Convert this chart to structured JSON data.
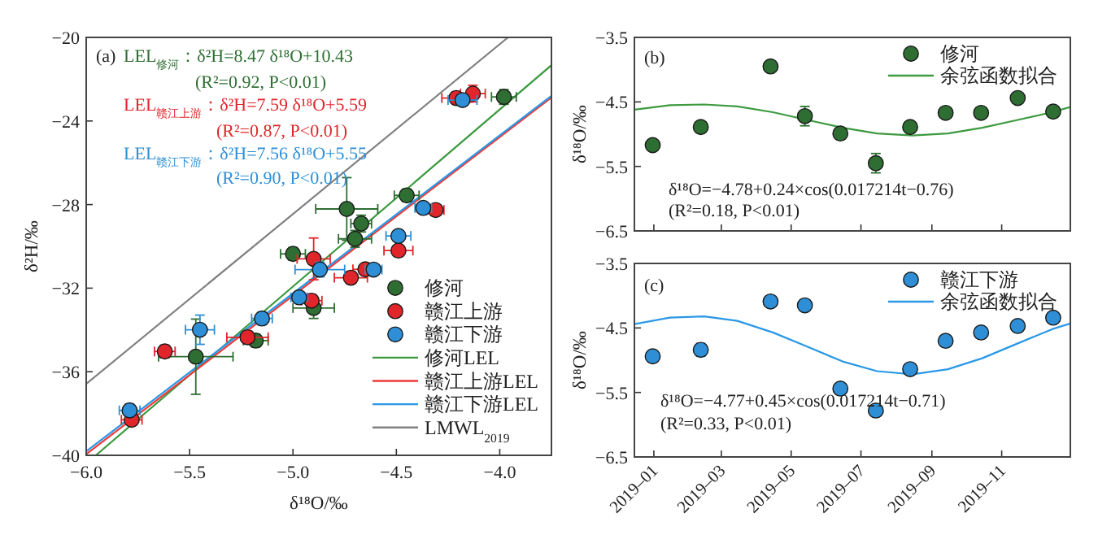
{
  "chart_data": [
    {
      "type": "scatter",
      "xlabel": "δ¹⁸O/‰",
      "ylabel": "δ²H/‰",
      "xlim": [
        -6.0,
        -3.75
      ],
      "ylim": [
        -40,
        -20
      ],
      "xticks": [
        {
          "value": -6.0,
          "label": "−6.0"
        },
        {
          "value": -5.5,
          "label": "−5.5"
        },
        {
          "value": -5.0,
          "label": "−5.0"
        },
        {
          "value": -4.5,
          "label": "−4.5"
        },
        {
          "value": -4.0,
          "label": "−4.0"
        }
      ],
      "yticks": [
        {
          "value": -40,
          "label": "−40"
        },
        {
          "value": -36,
          "label": "−36"
        },
        {
          "value": -32,
          "label": "−32"
        },
        {
          "value": -28,
          "label": "−28"
        },
        {
          "value": -24,
          "label": "−24"
        },
        {
          "value": -20,
          "label": "−20"
        }
      ],
      "legend": "bottom right",
      "annotations": [
        "(a)",
        "LEL$_{修河}$：δ²H=8.47 δ¹⁸O+10.43",
        "(R²=0.92, P<0.01)",
        "LEL$_{赣江上游}$：δ²H=7.59 δ¹⁸O+5.59",
        "(R²=0.87, P<0.01)",
        "LEL$_{赣江下游}$：δ²H=7.56 δ¹⁸O+5.55",
        "(R²=0.90, P<0.01)"
      ],
      "series": [
        {
          "name": "修河",
          "color": "#2e6e32",
          "marker": "circle",
          "x": [
            -3.98,
            -4.45,
            -4.74,
            -4.67,
            -4.7,
            -5.0,
            -4.9,
            -5.18,
            -5.47
          ],
          "values": [
            -22.85,
            -27.56,
            -28.21,
            -28.91,
            -29.64,
            -30.36,
            -32.95,
            -34.51,
            -35.28
          ],
          "errors": [
            0.35,
            0.3,
            1.5,
            0.4,
            0.4,
            0.3,
            0.5,
            0.3,
            1.8
          ],
          "xerrors": [
            0.06,
            0.06,
            0.15,
            0.05,
            0.08,
            0.06,
            0.1,
            0.06,
            0.18
          ]
        },
        {
          "name": "赣江上游",
          "color": "#e0262b",
          "marker": "circle",
          "x": [
            -4.13,
            -4.21,
            -4.31,
            -4.49,
            -4.9,
            -4.65,
            -4.72,
            -4.91,
            -5.22,
            -5.62,
            -5.78
          ],
          "values": [
            -22.69,
            -22.9,
            -28.26,
            -30.2,
            -30.6,
            -31.1,
            -31.5,
            -32.6,
            -34.35,
            -35.03,
            -38.3
          ],
          "errors": [
            0.4,
            0.3,
            0.2,
            0.2,
            1.0,
            0.2,
            0.3,
            0.3,
            0.3,
            0.3,
            0.2
          ],
          "xerrors": [
            0.06,
            0.07,
            0.04,
            0.07,
            0.08,
            0.06,
            0.08,
            0.05,
            0.1,
            0.05,
            0.05
          ]
        },
        {
          "name": "赣江下游",
          "color": "#2e8fd6",
          "marker": "circle",
          "x": [
            -4.18,
            -4.37,
            -4.49,
            -4.61,
            -4.87,
            -4.97,
            -5.15,
            -5.45,
            -5.79
          ],
          "values": [
            -23.0,
            -28.16,
            -29.5,
            -31.11,
            -31.11,
            -32.44,
            -33.45,
            -33.99,
            -37.85
          ],
          "errors": [
            null,
            0.2,
            0.2,
            null,
            0.35,
            0.2,
            0.3,
            0.7,
            0.3
          ],
          "xerrors": [
            0.07,
            0.04,
            0.06,
            0.04,
            0.12,
            0.04,
            0.05,
            0.07,
            0.05
          ]
        },
        {
          "name": "修河LEL",
          "type": "line",
          "color": "#3d9a40",
          "x": [
            -5.95,
            -3.75
          ],
          "values": [
            -39.97,
            -21.33
          ]
        },
        {
          "name": "赣江上游LEL",
          "type": "line",
          "color": "#ee3a3a",
          "x": [
            -6.0,
            -3.75
          ],
          "values": [
            -39.95,
            -22.87
          ]
        },
        {
          "name": "赣江下游LEL",
          "type": "line",
          "color": "#2a98e6",
          "x": [
            -6.0,
            -3.75
          ],
          "values": [
            -39.81,
            -22.8
          ]
        },
        {
          "name": "LMWL$_{2019}$",
          "type": "line",
          "color": "#808080",
          "x": [
            -6.0,
            -3.96
          ],
          "values": [
            -36.58,
            -20
          ]
        }
      ]
    },
    {
      "type": "scatter",
      "ylabel": "δ¹⁸O/‰",
      "xlim": [
        "2018-12-15",
        "2019-12-31"
      ],
      "ylim": [
        -6.5,
        -3.5
      ],
      "xticks": [
        {
          "value": "2019-01",
          "label": null
        },
        {
          "value": "2019-03",
          "label": null
        },
        {
          "value": "2019-05",
          "label": null
        },
        {
          "value": "2019-07",
          "label": null
        },
        {
          "value": "2019-09",
          "label": null
        },
        {
          "value": "2019-11",
          "label": null
        }
      ],
      "yticks": [
        {
          "value": -3.5,
          "label": "−3.5"
        },
        {
          "value": -4.5,
          "label": "−4.5"
        },
        {
          "value": -5.5,
          "label": "−5.5"
        },
        {
          "value": -6.5,
          "label": "−6.5"
        }
      ],
      "tick_labels": "y",
      "legend": "top right",
      "annotations": [
        "(b)",
        "δ¹⁸O=−4.78+0.24×cos(0.017214t−0.76)",
        "(R²=0.18, P<0.01)"
      ],
      "series": [
        {
          "name": "修河",
          "color": "#2e6e32",
          "marker": "circle",
          "x": [
            "2018-12-31",
            "2019-02-11",
            "2019-04-13",
            "2019-05-13",
            "2019-06-13",
            "2019-07-14",
            "2019-08-13",
            "2019-09-13",
            "2019-10-14",
            "2019-11-15",
            "2019-12-16"
          ],
          "values": [
            -5.17,
            -4.89,
            -3.95,
            -4.72,
            -4.99,
            -5.45,
            -4.89,
            -4.67,
            -4.67,
            -4.44,
            -4.65
          ],
          "errors": [
            null,
            null,
            null,
            0.15,
            null,
            0.15,
            null,
            null,
            null,
            null,
            null
          ]
        },
        {
          "name": "余弦函数拟合",
          "type": "line",
          "color": "#3d9a40",
          "x": [
            "2018-12-15",
            "2019-01-15",
            "2019-02-14",
            "2019-03-15",
            "2019-04-15",
            "2019-05-15",
            "2019-06-15",
            "2019-07-15",
            "2019-08-15",
            "2019-09-15",
            "2019-10-15",
            "2019-11-15",
            "2019-12-15",
            "2019-12-31"
          ],
          "values": [
            -4.62,
            -4.55,
            -4.54,
            -4.57,
            -4.66,
            -4.78,
            -4.9,
            -4.99,
            -5.02,
            -4.99,
            -4.9,
            -4.78,
            -4.66,
            -4.58
          ]
        }
      ]
    },
    {
      "type": "scatter",
      "xlim": [
        "2018-12-15",
        "2019-12-31"
      ],
      "ylim": [
        -6.5,
        -3.5
      ],
      "xticks": [
        {
          "value": "2019-01",
          "label": "2019–01"
        },
        {
          "value": "2019-03",
          "label": "2019–03"
        },
        {
          "value": "2019-05",
          "label": "2019–05"
        },
        {
          "value": "2019-07",
          "label": "2019–07"
        },
        {
          "value": "2019-09",
          "label": "2019–09"
        },
        {
          "value": "2019-11",
          "label": "2019–11"
        }
      ],
      "yticks": [
        {
          "value": -3.5,
          "label": "−3.5"
        },
        {
          "value": -4.5,
          "label": "−4.5"
        },
        {
          "value": -5.5,
          "label": "−5.5"
        },
        {
          "value": -6.5,
          "label": "−6.5"
        }
      ],
      "ylabel": "δ¹⁸O/‰",
      "legend": "top right",
      "annotations": [
        "(c)",
        "δ¹⁸O=−4.77+0.45×cos(0.017214t−0.71)",
        "(R²=0.33, P<0.01)"
      ],
      "series": [
        {
          "name": "赣江下游",
          "color": "#2e8fd6",
          "marker": "circle",
          "x": [
            "2018-12-31",
            "2019-02-11",
            "2019-04-13",
            "2019-05-13",
            "2019-06-13",
            "2019-07-14",
            "2019-08-13",
            "2019-09-13",
            "2019-10-14",
            "2019-11-15",
            "2019-12-16"
          ],
          "values": [
            -4.94,
            -4.84,
            -4.09,
            -4.15,
            -5.44,
            -5.78,
            -5.14,
            -4.7,
            -4.57,
            -4.47,
            -4.34
          ],
          "errors": [
            null,
            0.1,
            null,
            null,
            null,
            null,
            null,
            null,
            null,
            null,
            null
          ]
        },
        {
          "name": "余弦函数拟合",
          "type": "line",
          "color": "#2a98e6",
          "x": [
            "2018-12-15",
            "2019-01-15",
            "2019-02-14",
            "2019-03-15",
            "2019-04-15",
            "2019-05-15",
            "2019-06-15",
            "2019-07-15",
            "2019-08-15",
            "2019-09-15",
            "2019-10-15",
            "2019-11-15",
            "2019-12-15",
            "2019-12-31"
          ],
          "values": [
            -4.44,
            -4.34,
            -4.32,
            -4.39,
            -4.57,
            -4.79,
            -5.02,
            -5.17,
            -5.22,
            -5.14,
            -4.97,
            -4.74,
            -4.52,
            -4.43
          ]
        }
      ]
    }
  ]
}
